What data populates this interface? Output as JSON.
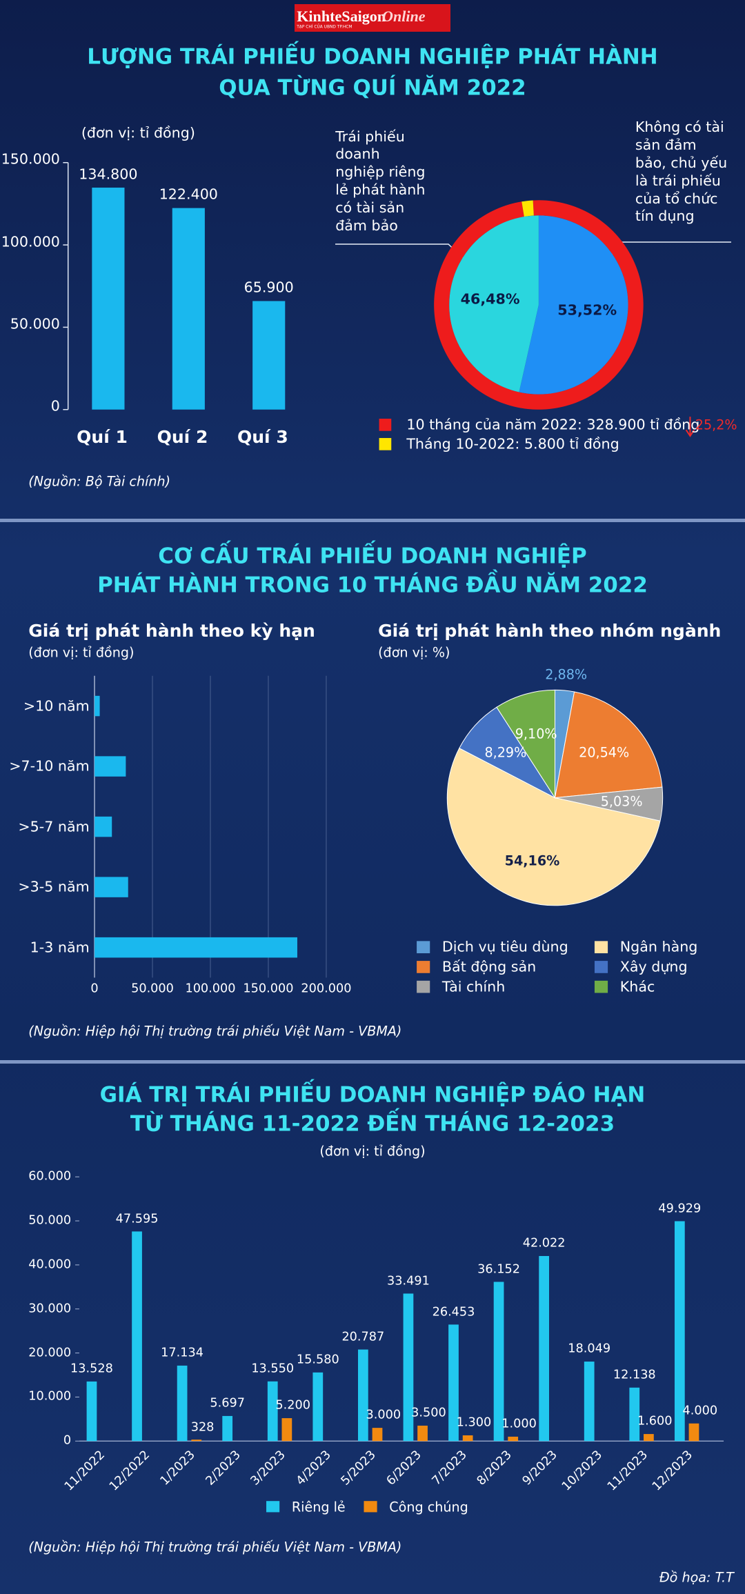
{
  "header": {
    "logo": [
      "KinhteSaigon",
      "Online"
    ],
    "tagline": "TẠP CHÍ CỦA UBND TP.HCM"
  },
  "sections": [
    {
      "title": [
        "LƯỢNG TRÁI PHIẾU DOANH NGHIỆP PHÁT HÀNH",
        "QUA TỪNG QUÍ NĂM 2022"
      ],
      "source": "(Nguồn: Bộ Tài chính)"
    },
    {
      "title": [
        "CƠ CẤU TRÁI PHIẾU DOANH NGHIỆP",
        "PHÁT HÀNH TRONG 10 THÁNG ĐẦU NĂM 2022"
      ],
      "source": "(Nguồn: Hiệp hội Thị trường trái phiếu Việt Nam - VBMA)"
    },
    {
      "title": [
        "GIÁ TRỊ TRÁI PHIẾU DOANH NGHIỆP ĐÁO HẠN",
        "TỪ THÁNG 11-2022 ĐẾN THÁNG 12-2023"
      ],
      "source": "(Nguồn: Hiệp hội Thị trường trái phiếu Việt Nam - VBMA)"
    }
  ],
  "chart_data": [
    {
      "type": "bar",
      "unit": "(đơn vị: tỉ đồng)",
      "categories": [
        "Quí 1",
        "Quí 2",
        "Quí 3"
      ],
      "values": [
        134800,
        122400,
        65900
      ],
      "value_labels": [
        "134.800",
        "122.400",
        "65.900"
      ],
      "color": "#1ab8ee",
      "ylim": [
        0,
        150000
      ],
      "yticks": [
        0,
        {
          "value": 50000,
          "label": "50.000"
        },
        {
          "value": 100000,
          "label": "100.000"
        },
        {
          "value": 150000,
          "label": "150.000"
        }
      ]
    },
    {
      "type": "donut",
      "categories": [
        "Không có tài sản đảm bảo, chủ yếu là trái phiếu của tổ chức tín dụng",
        "Trái phiếu doanh nghiệp riêng lẻ phát hành có tài sản đảm bảo"
      ],
      "values": [
        53.52,
        46.48
      ],
      "value_labels": [
        "53,52%",
        "46,48%"
      ],
      "colors": [
        "#1f8ff5",
        "#2ad6de"
      ],
      "ring": {
        "categories": [
          "10 tháng của năm 2022: 328.900 tỉ đồng",
          "Tháng 10-2022: 5.800 tỉ đồng"
        ],
        "values": [
          328900,
          5800
        ],
        "colors": [
          "#ee1c1c",
          "#ffe600"
        ]
      },
      "annotation": "25,2%",
      "annotation_color": "#ee2a2a"
    },
    {
      "type": "barh",
      "title": "Giá trị phát hành theo kỳ hạn",
      "unit": "(đơn vị: tỉ đồng)",
      "categories": [
        ">10 năm",
        ">7-10 năm",
        ">5-7 năm",
        ">3-5 năm",
        "1-3 năm"
      ],
      "values": [
        4500,
        27000,
        15000,
        29000,
        175000
      ],
      "color": "#1ab8ee",
      "xlim": [
        0,
        200000
      ],
      "xticks": [
        0,
        {
          "value": 50000,
          "label": "50.000"
        },
        {
          "value": 100000,
          "label": "100.000"
        },
        {
          "value": 150000,
          "label": "150.000"
        },
        {
          "value": 200000,
          "label": "200.000"
        }
      ],
      "grid": true
    },
    {
      "type": "pie",
      "title": "Giá trị phát hành theo nhóm ngành",
      "unit": "(đơn vị: %)",
      "categories": [
        "Dịch vụ tiêu dùng",
        "Bất động sản",
        "Tài chính",
        "Ngân hàng",
        "Xây dựng",
        "Khác"
      ],
      "values": [
        2.88,
        20.54,
        5.03,
        54.16,
        8.29,
        9.1
      ],
      "value_labels": [
        "2,88%",
        "20,54%",
        "5,03%",
        "54,16%",
        "8,29%",
        "9,10%"
      ],
      "colors": [
        "#5b9bd5",
        "#ed7d31",
        "#a5a5a5",
        "#ffe2a3",
        "#4472c4",
        "#70ad47"
      ]
    },
    {
      "type": "grouped-bar",
      "unit": "(đơn vị: tỉ đồng)",
      "categories": [
        "11/2022",
        "12/2022",
        "1/2023",
        "2/2023",
        "3/2023",
        "4/2023",
        "5/2023",
        "6/2023",
        "7/2023",
        "8/2023",
        "9/2023",
        "10/2023",
        "11/2023",
        "12/2023"
      ],
      "series": [
        {
          "name": "Riêng lẻ",
          "color": "#22c8ef",
          "values": [
            13528,
            47595,
            17134,
            5697,
            13550,
            15580,
            20787,
            33491,
            26453,
            36152,
            42022,
            18049,
            12138,
            49929
          ],
          "value_labels": [
            "13.528",
            "47.595",
            "17.134",
            "5.697",
            "13.550",
            "15.580",
            "20.787",
            "33.491",
            "26.453",
            "36.152",
            "42.022",
            "18.049",
            "12.138",
            "49.929"
          ]
        },
        {
          "name": "Công chúng",
          "color": "#f28a10",
          "values": [
            null,
            null,
            328,
            null,
            5200,
            null,
            3000,
            3500,
            1300,
            1000,
            null,
            null,
            1600,
            4000
          ],
          "value_labels": [
            null,
            null,
            "328",
            null,
            "5.200",
            null,
            "3.000",
            "3.500",
            "1.300",
            "1.000",
            null,
            null,
            "1.600",
            "4.000"
          ]
        }
      ],
      "ylim": [
        0,
        60000
      ],
      "yticks": [
        0,
        {
          "value": 10000,
          "label": "10.000"
        },
        {
          "value": 20000,
          "label": "20.000"
        },
        {
          "value": 30000,
          "label": "30.000"
        },
        {
          "value": 40000,
          "label": "40.000"
        },
        {
          "value": 50000,
          "label": "50.000"
        },
        {
          "value": 60000,
          "label": "60.000"
        }
      ]
    }
  ],
  "credit": "Đồ họa: T.T"
}
